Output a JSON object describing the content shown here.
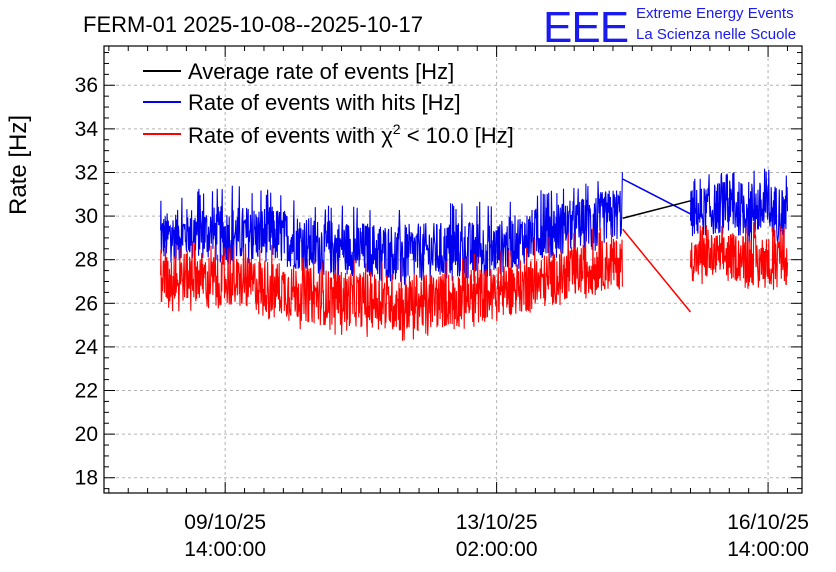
{
  "title": "FERM-01 2025-10-08--2025-10-17",
  "logo": {
    "mark": "EEE",
    "line1": "Extreme Energy Events",
    "line2": "La Scienza nelle Scuole"
  },
  "colors": {
    "average": "#000000",
    "hits": "#0000ee",
    "chi2": "#ff0000",
    "grid": "#b3b3b3",
    "logo": "#1a1aee"
  },
  "chart_data": {
    "type": "line",
    "title": "FERM-01 2025-10-08--2025-10-17",
    "xlabel": "",
    "ylabel": "Rate [Hz]",
    "ylim": [
      17.3,
      37.8
    ],
    "yticks": [
      18,
      20,
      22,
      24,
      26,
      28,
      30,
      32,
      34,
      36
    ],
    "x_unit": "hours since 2025-10-08 00:00",
    "xlim": [
      0.5,
      216.5
    ],
    "xticks": [
      {
        "x": 38,
        "label_date": "09/10/25",
        "label_time": "14:00:00"
      },
      {
        "x": 122,
        "label_date": "13/10/25",
        "label_time": "02:00:00"
      },
      {
        "x": 206,
        "label_date": "16/10/25",
        "label_time": "14:00:00"
      }
    ],
    "gap_hours": [
      161,
      182
    ],
    "legend_position": "top-left",
    "series": [
      {
        "name": "Average rate of events [Hz]",
        "color": "#000000",
        "x": [
          161,
          182
        ],
        "values": [
          29.9,
          30.7
        ]
      },
      {
        "name": "Rate of events with hits [Hz]",
        "color": "#0000ee",
        "x": [
          18,
          28,
          38,
          52,
          66,
          80,
          94,
          108,
          122,
          136,
          150,
          161,
          182,
          192,
          202,
          212
        ],
        "values": [
          29.0,
          29.3,
          29.1,
          29.2,
          28.6,
          28.5,
          28.3,
          28.4,
          28.5,
          29.3,
          29.7,
          30.2,
          30.1,
          30.4,
          30.3,
          30.2
        ],
        "band_min": [
          27.8,
          28.0,
          27.7,
          27.6,
          26.9,
          27.0,
          26.8,
          26.8,
          27.2,
          27.9,
          28.3,
          28.6,
          28.6,
          28.7,
          28.6,
          28.6
        ],
        "band_max": [
          30.9,
          31.2,
          31.5,
          31.2,
          30.6,
          30.5,
          30.5,
          30.6,
          30.7,
          31.2,
          31.6,
          32.1,
          31.7,
          32.1,
          32.3,
          31.9
        ]
      },
      {
        "name": "Rate of events with χ2 < 10.0 [Hz]",
        "color": "#ff0000",
        "x": [
          18,
          28,
          38,
          52,
          66,
          80,
          94,
          108,
          122,
          136,
          150,
          161,
          182,
          192,
          202,
          212
        ],
        "values": [
          27.0,
          27.3,
          27.0,
          26.8,
          26.3,
          26.2,
          26.0,
          26.2,
          26.5,
          27.0,
          27.6,
          27.9,
          28.0,
          28.2,
          28.0,
          27.9
        ],
        "band_min": [
          25.5,
          25.6,
          25.6,
          25.2,
          24.6,
          24.4,
          24.1,
          24.6,
          25.1,
          25.6,
          26.2,
          26.6,
          26.7,
          26.8,
          26.6,
          26.6
        ],
        "band_max": [
          28.6,
          28.9,
          28.8,
          28.7,
          28.2,
          28.0,
          27.9,
          28.2,
          28.4,
          29.1,
          29.4,
          29.8,
          29.5,
          29.8,
          29.8,
          29.5
        ]
      }
    ],
    "legend": [
      {
        "series": "Average rate of events [Hz]",
        "text": "Average rate of events [Hz]"
      },
      {
        "series": "Rate of events with hits [Hz]",
        "text": "Rate of events with hits [Hz]"
      },
      {
        "series": "Rate of events with χ2 < 10.0 [Hz]",
        "text_prefix": "Rate of events with ",
        "symbol": "χ",
        "superscript": "2",
        "text_suffix": " < 10.0 [Hz]"
      }
    ]
  }
}
